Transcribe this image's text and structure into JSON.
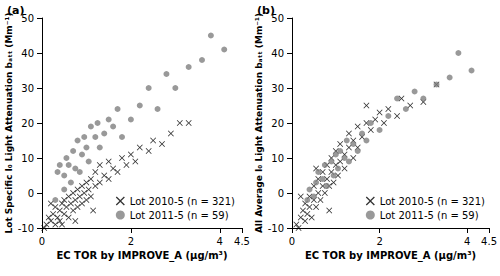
{
  "chart_data": [
    {
      "type": "scatter",
      "title": "(a)",
      "xlabel": "EC TOR by IMPROVE_A (µg/m³)",
      "ylabel": "Lot Specific I₀ Light Attenuation bₐₜₜ (Mm⁻¹)",
      "xlim": [
        0,
        4.5
      ],
      "xticks": [
        0,
        2,
        4
      ],
      "ylim": [
        -10,
        50
      ],
      "yticks": [
        -10,
        0,
        10,
        20,
        30,
        40,
        50
      ],
      "grid": false,
      "legend": "lower right",
      "series": [
        {
          "name": "Lot 2010-5 (n = 321)",
          "color": "#000000",
          "marker": "x",
          "x": [
            0.05,
            0.1,
            0.15,
            0.2,
            0.25,
            0.3,
            0.3,
            0.35,
            0.4,
            0.4,
            0.45,
            0.5,
            0.5,
            0.55,
            0.6,
            0.6,
            0.65,
            0.7,
            0.7,
            0.75,
            0.8,
            0.8,
            0.85,
            0.9,
            0.9,
            0.95,
            1.0,
            1.0,
            1.05,
            1.1,
            1.1,
            1.2,
            1.2,
            1.3,
            1.3,
            1.4,
            1.5,
            1.5,
            1.6,
            1.7,
            1.8,
            1.9,
            2.0,
            2.1,
            2.2,
            2.4,
            2.5,
            2.7,
            2.9,
            3.1,
            3.3,
            0.2,
            0.45,
            0.75,
            1.15
          ],
          "values": [
            -10,
            -9,
            -7,
            -8,
            -6,
            -9,
            -4,
            -7,
            -5,
            -8,
            -3,
            -6,
            -2,
            -4,
            -7,
            -1,
            -3,
            0,
            -5,
            -2,
            1,
            -4,
            -1,
            2,
            -3,
            0,
            3,
            -2,
            1,
            4,
            -1,
            2,
            6,
            3,
            8,
            5,
            4,
            9,
            7,
            6,
            10,
            8,
            11,
            9,
            13,
            12,
            15,
            14,
            17,
            20,
            20,
            -3,
            -9,
            -8,
            -5
          ]
        },
        {
          "name": "Lot 2011-5 (n = 59)",
          "color": "#808080",
          "marker": "circle",
          "x": [
            0.35,
            0.4,
            0.5,
            0.55,
            0.6,
            0.7,
            0.75,
            0.8,
            0.9,
            0.95,
            1.0,
            1.05,
            1.1,
            1.2,
            1.25,
            1.3,
            1.4,
            1.5,
            1.6,
            1.7,
            1.8,
            2.0,
            2.2,
            2.4,
            2.6,
            2.8,
            3.0,
            3.3,
            3.6,
            3.8,
            4.1,
            0.3,
            0.5,
            0.65,
            0.85
          ],
          "values": [
            6,
            8,
            5,
            10,
            8,
            12,
            7,
            15,
            11,
            16,
            13,
            9,
            19,
            16,
            20,
            13,
            17,
            21,
            19,
            24,
            16,
            21,
            25,
            30,
            24,
            34,
            30,
            36,
            38,
            45,
            41,
            -2,
            1,
            3,
            6
          ]
        }
      ]
    },
    {
      "type": "scatter",
      "title": "(b)",
      "xlabel": "EC TOR by IMPROVE_A (µg/m³)",
      "ylabel": "All Average I₀ Light Attenuation bₐₜₜ (Mm⁻¹)",
      "xlim": [
        0,
        4.5
      ],
      "xticks": [
        0,
        2,
        4
      ],
      "ylim": [
        -10,
        50
      ],
      "yticks": [
        -10,
        0,
        10,
        20,
        30,
        40,
        50
      ],
      "grid": false,
      "legend": "lower right",
      "series": [
        {
          "name": "Lot 2010-5 (n = 321)",
          "color": "#000000",
          "marker": "x",
          "x": [
            0.1,
            0.15,
            0.2,
            0.25,
            0.3,
            0.3,
            0.35,
            0.4,
            0.4,
            0.45,
            0.5,
            0.5,
            0.55,
            0.6,
            0.6,
            0.65,
            0.7,
            0.7,
            0.75,
            0.8,
            0.8,
            0.85,
            0.9,
            0.9,
            0.95,
            1.0,
            1.0,
            1.05,
            1.1,
            1.1,
            1.2,
            1.2,
            1.3,
            1.3,
            1.4,
            1.4,
            1.5,
            1.5,
            1.6,
            1.7,
            1.7,
            1.8,
            1.9,
            2.0,
            2.1,
            2.2,
            2.4,
            2.5,
            2.7,
            3.0,
            3.3,
            0.2,
            0.55,
            0.85
          ],
          "values": [
            -9,
            -10,
            -7,
            -5,
            -8,
            -3,
            -6,
            -4,
            -1,
            -7,
            -2,
            2,
            -4,
            0,
            4,
            -2,
            2,
            6,
            0,
            4,
            8,
            2,
            6,
            10,
            3,
            8,
            12,
            5,
            9,
            14,
            7,
            11,
            13,
            17,
            10,
            15,
            13,
            19,
            16,
            20,
            25,
            18,
            21,
            23,
            20,
            24,
            22,
            27,
            25,
            26,
            31,
            -1,
            7,
            -5
          ]
        },
        {
          "name": "Lot 2011-5 (n = 59)",
          "color": "#808080",
          "marker": "circle",
          "x": [
            0.35,
            0.4,
            0.5,
            0.55,
            0.6,
            0.7,
            0.75,
            0.8,
            0.9,
            0.95,
            1.0,
            1.05,
            1.1,
            1.2,
            1.25,
            1.3,
            1.4,
            1.5,
            1.6,
            1.7,
            1.8,
            2.0,
            2.2,
            2.4,
            2.6,
            2.8,
            3.0,
            3.3,
            3.6,
            3.8,
            4.1
          ],
          "values": [
            -2,
            1,
            -1,
            3,
            6,
            4,
            8,
            2,
            9,
            5,
            11,
            7,
            12,
            10,
            15,
            9,
            14,
            12,
            17,
            15,
            20,
            18,
            22,
            27,
            24,
            29,
            27,
            31,
            33,
            40,
            35
          ]
        }
      ]
    }
  ]
}
